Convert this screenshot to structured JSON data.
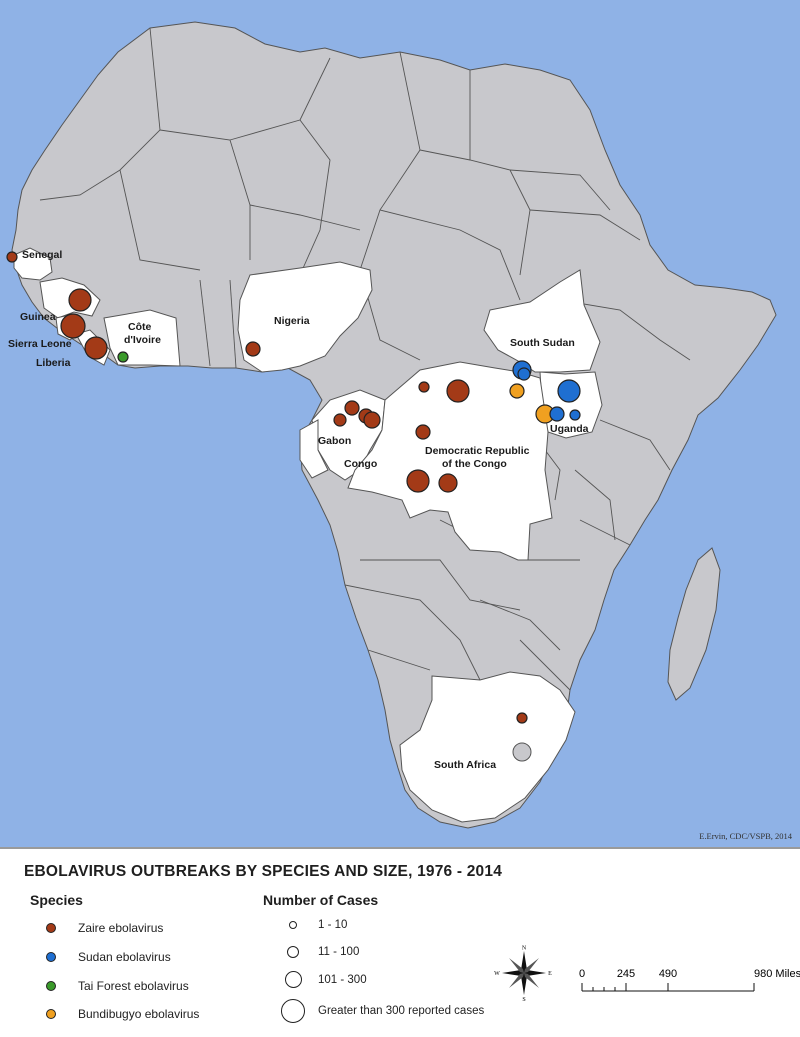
{
  "map": {
    "countries": [
      {
        "name": "Senegal",
        "label": "Senegal"
      },
      {
        "name": "Guinea",
        "label": "Guinea"
      },
      {
        "name": "Sierra Leone",
        "label": "Sierra Leone"
      },
      {
        "name": "Liberia",
        "label": "Liberia"
      },
      {
        "name": "Cote d'Ivoire",
        "label": "Côte d'Ivoire"
      },
      {
        "name": "Nigeria",
        "label": "Nigeria"
      },
      {
        "name": "South Sudan",
        "label": "South Sudan"
      },
      {
        "name": "Uganda",
        "label": "Uganda"
      },
      {
        "name": "Gabon",
        "label": "Gabon"
      },
      {
        "name": "Congo",
        "label": "Congo"
      },
      {
        "name": "Democratic Republic of the Congo",
        "label": "Democratic Republic of the Congo"
      },
      {
        "name": "South Africa",
        "label": "South Africa"
      }
    ],
    "colors": {
      "ocean": "#8fb2e6",
      "land": "#c8c8cc",
      "affected": "#ffffff",
      "border": "#555555"
    },
    "credit": "E.Ervin, CDC/VSPB, 2014"
  },
  "legend": {
    "title": "EBOLAVIRUS OUTBREAKS BY SPECIES AND SIZE, 1976 - 2014",
    "species_heading": "Species",
    "species": [
      {
        "label": "Zaire ebolavirus",
        "color": "#a33a17"
      },
      {
        "label": "Sudan ebolavirus",
        "color": "#1f6fd1"
      },
      {
        "label": "Tai Forest ebolavirus",
        "color": "#3a9a2a"
      },
      {
        "label": "Bundibugyo ebolavirus",
        "color": "#f0a020"
      }
    ],
    "cases_heading": "Number of Cases",
    "cases": [
      {
        "label": "1 - 10"
      },
      {
        "label": "11 - 100"
      },
      {
        "label": "101 - 300"
      },
      {
        "label": "Greater than 300 reported cases"
      }
    ],
    "compass": {
      "n": "N",
      "s": "S",
      "e": "E",
      "w": "W"
    },
    "scale": {
      "ticks": [
        "0",
        "245",
        "490",
        "980 Miles"
      ]
    }
  }
}
